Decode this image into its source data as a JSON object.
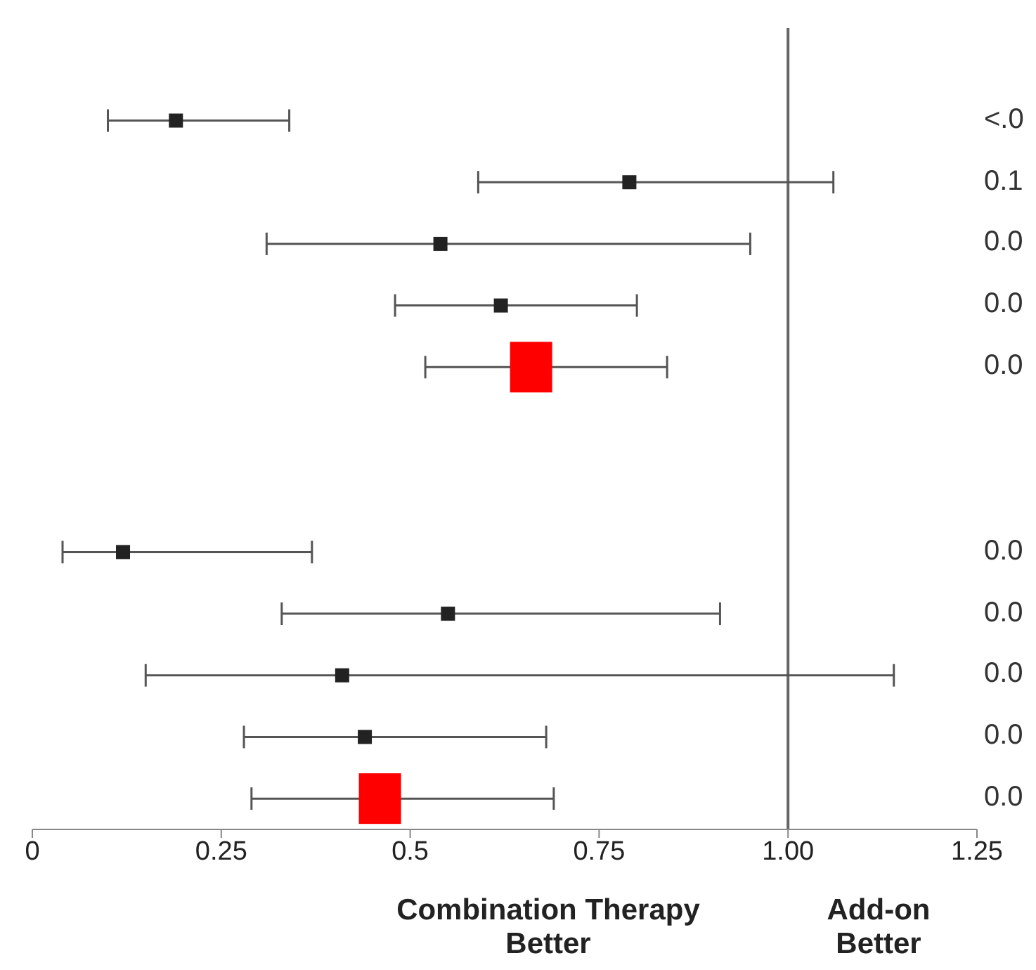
{
  "chart_data": {
    "type": "scatter",
    "orientation": "horizontal",
    "categories": [
      null,
      null,
      null,
      null,
      null,
      null,
      null,
      null,
      null,
      null,
      null,
      null,
      null
    ],
    "series": [
      {
        "color": "#222222",
        "marker": "square",
        "values": [
          null,
          0.19,
          0.79,
          0.54,
          0.62,
          null,
          null,
          null,
          0.12,
          0.55,
          0.41,
          0.44,
          null
        ],
        "errors": [
          null,
          [
            0.1,
            0.34
          ],
          [
            0.59,
            1.06
          ],
          [
            0.31,
            0.95
          ],
          [
            0.48,
            0.8
          ],
          null,
          null,
          null,
          [
            0.04,
            0.37
          ],
          [
            0.33,
            0.91
          ],
          [
            0.15,
            1.14
          ],
          [
            0.28,
            0.68
          ],
          null
        ]
      },
      {
        "color": "#ff0000",
        "marker": "square",
        "values": [
          null,
          null,
          null,
          null,
          null,
          0.66,
          null,
          null,
          null,
          null,
          null,
          null,
          0.46
        ],
        "errors": [
          null,
          null,
          null,
          null,
          null,
          [
            0.52,
            0.84
          ],
          null,
          null,
          null,
          null,
          null,
          null,
          [
            0.29,
            0.69
          ]
        ]
      }
    ],
    "xlim": [
      0,
      1.25
    ],
    "xticks": [
      0,
      0.25,
      0.5,
      0.75,
      {
        "value": 1,
        "label": "1.00"
      },
      1.25
    ],
    "tick_labels": "x",
    "grid": false,
    "legend": false,
    "ref_lines": [
      {
        "axis": "x",
        "value": 1,
        "color": "#666666"
      }
    ],
    "value_labels": [
      null,
      "<.0",
      "0.1",
      "0.0",
      "0.0",
      "0.0",
      null,
      null,
      "0.0",
      "0.0",
      "0.0",
      "0.0",
      "0.0"
    ],
    "annotations": [
      "Combination Therapy\nBetter",
      "Add-on\nBetter"
    ]
  }
}
